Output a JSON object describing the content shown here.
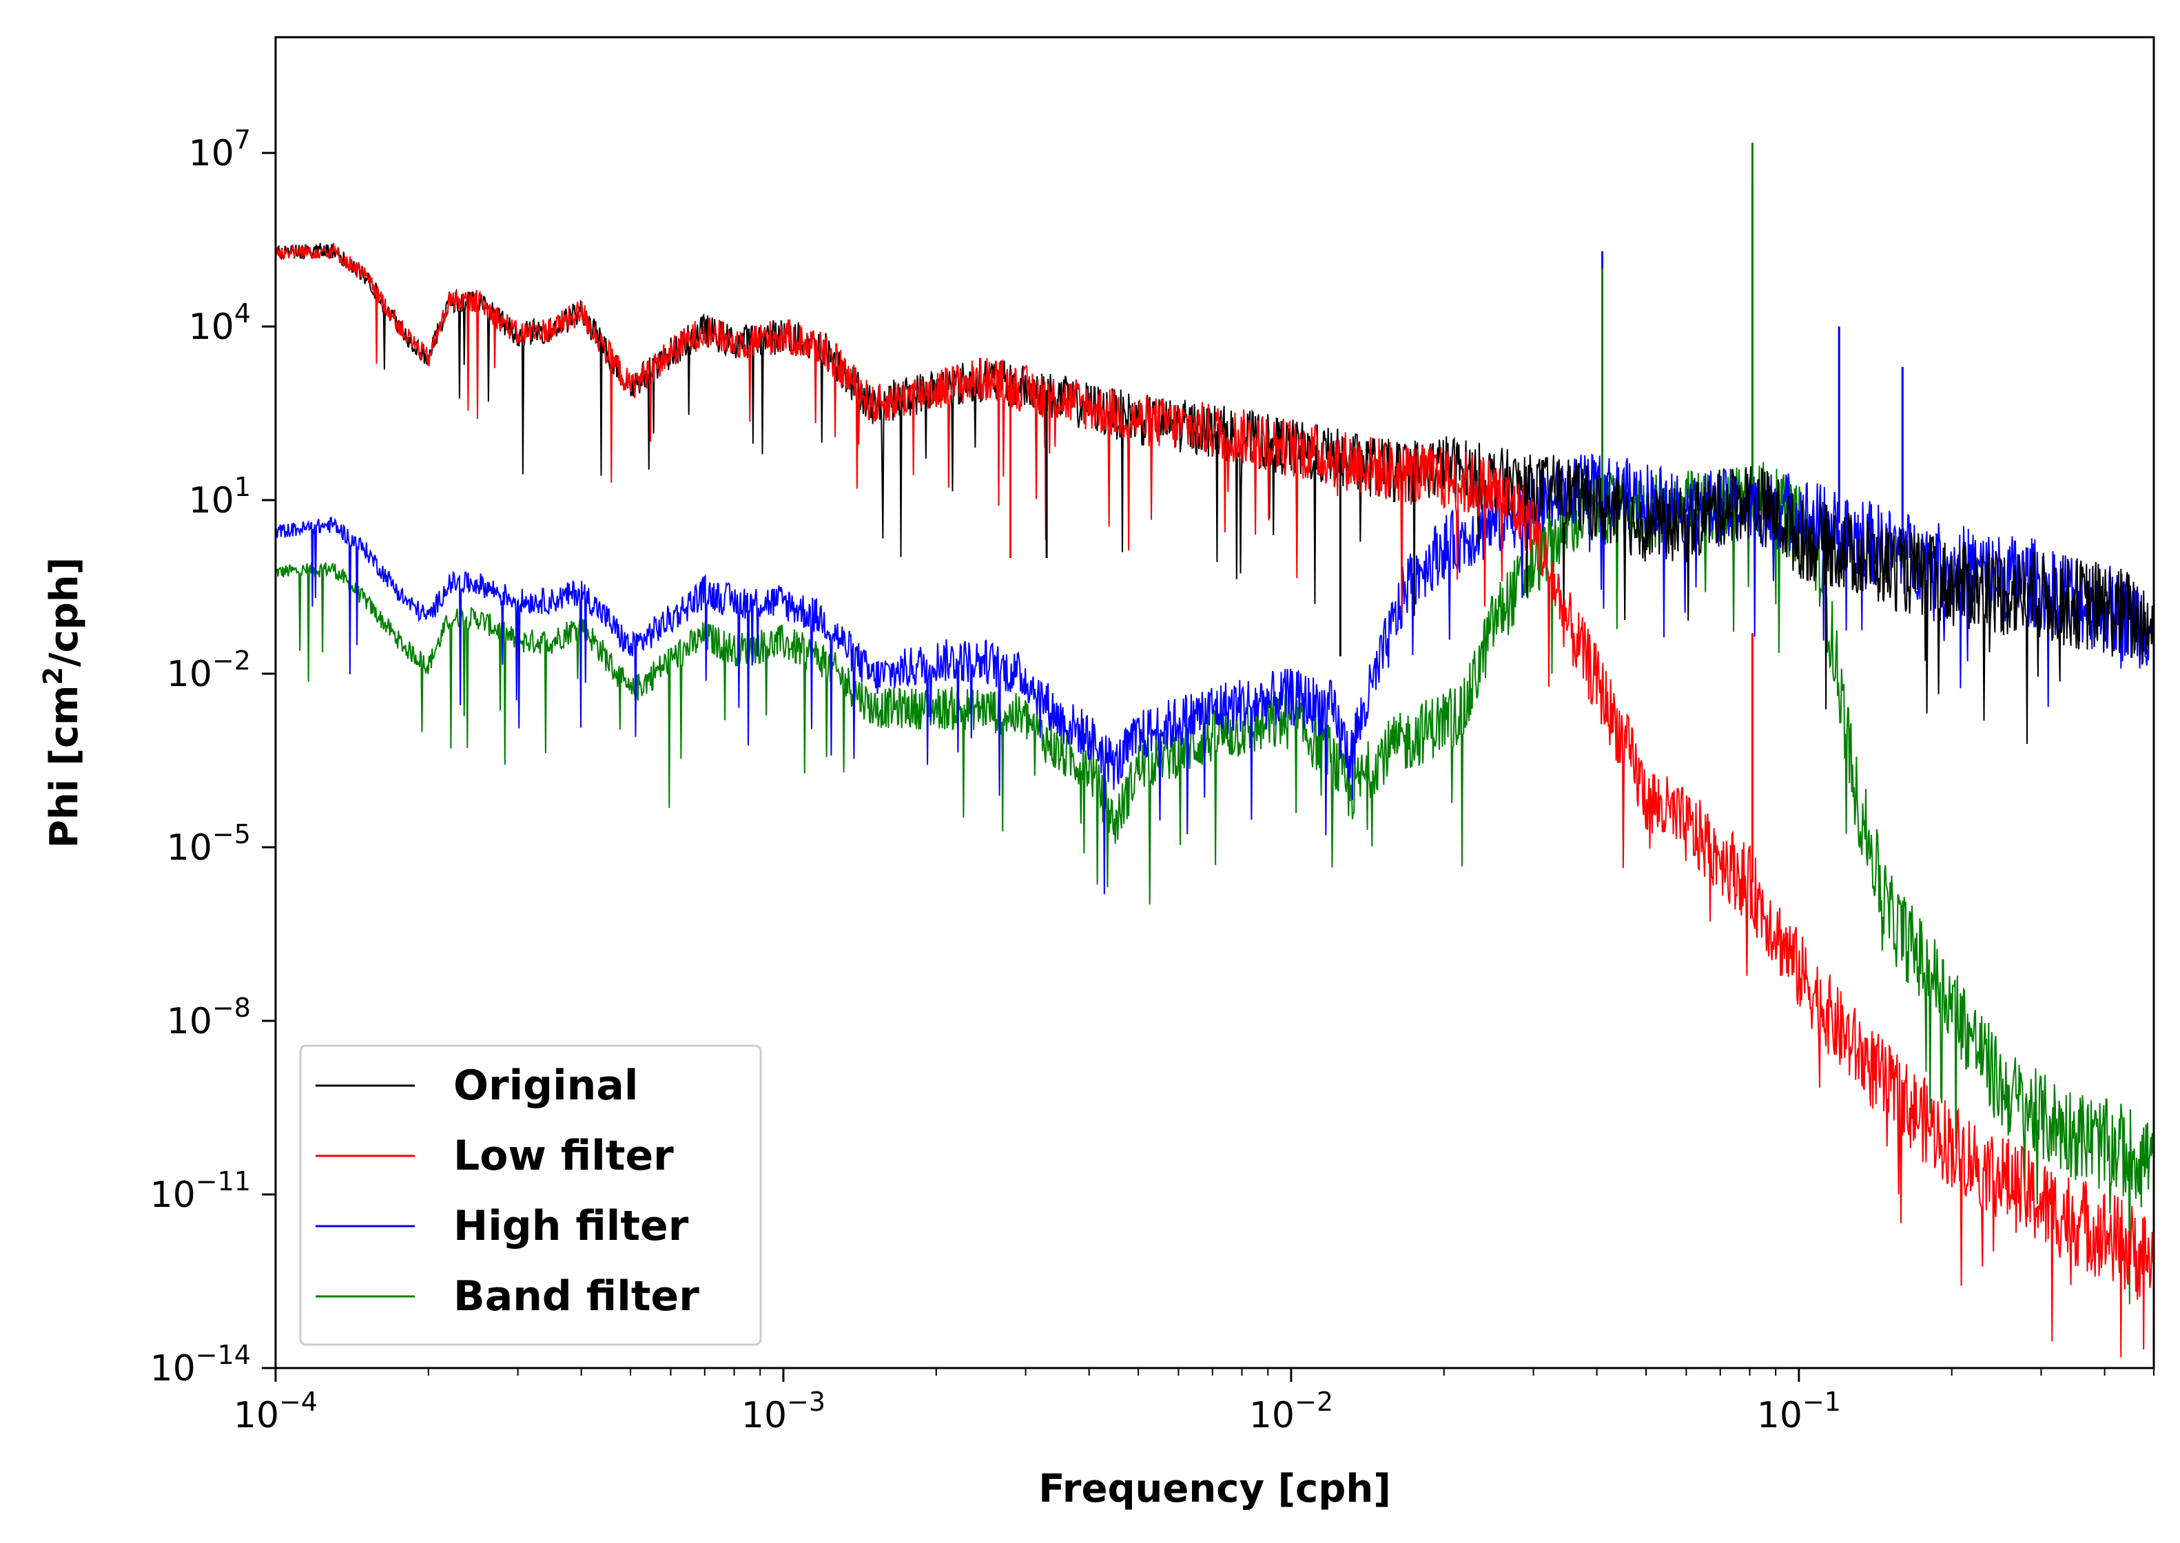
{
  "chart_data": {
    "type": "line",
    "title": "",
    "xlabel": "Frequency [cph]",
    "ylabel_main": "Phi [cm",
    "ylabel_sup": "2",
    "ylabel_tail": "/cph]",
    "xscale": "log",
    "yscale": "log",
    "xlim": [
      0.0001,
      0.5
    ],
    "ylim": [
      1e-14,
      1000000000.0
    ],
    "x_ticks": [
      {
        "base": "10",
        "exp": "−4"
      },
      {
        "base": "10",
        "exp": "−3"
      },
      {
        "base": "10",
        "exp": "−2"
      },
      {
        "base": "10",
        "exp": "−1"
      }
    ],
    "y_ticks": [
      {
        "base": "10",
        "exp": "7"
      },
      {
        "base": "10",
        "exp": "4"
      },
      {
        "base": "10",
        "exp": "1"
      },
      {
        "base": "10",
        "exp": "−2"
      },
      {
        "base": "10",
        "exp": "−5"
      },
      {
        "base": "10",
        "exp": "−8"
      },
      {
        "base": "10",
        "exp": "−11"
      },
      {
        "base": "10",
        "exp": "−14"
      }
    ],
    "grid": false,
    "legend_position": "lower-left",
    "series": [
      {
        "name": "Original",
        "color": "#000000",
        "x": [
          0.0001,
          0.00013,
          0.00015,
          0.00018,
          0.0002,
          0.00022,
          0.00025,
          0.0003,
          0.00035,
          0.0004,
          0.00045,
          0.0005,
          0.0006,
          0.0007,
          0.0008,
          0.001,
          0.0012,
          0.0015,
          0.002,
          0.0025,
          0.003,
          0.004,
          0.005,
          0.007,
          0.01,
          0.013,
          0.016,
          0.02,
          0.025,
          0.03,
          0.035,
          0.04,
          0.05,
          0.06,
          0.07,
          0.08,
          0.09,
          0.1,
          0.12,
          0.15,
          0.2,
          0.3,
          0.4,
          0.5
        ],
        "y": [
          200000,
          220000,
          80000,
          8000,
          3000,
          30000,
          30000,
          8000,
          10000,
          20000,
          4000,
          1000,
          4000,
          10000,
          6000,
          8000,
          5000,
          500,
          1000,
          1500,
          1000,
          500,
          300,
          200,
          100,
          60,
          40,
          50,
          30,
          20,
          20,
          10,
          5,
          5,
          10,
          15,
          8,
          3,
          2,
          1,
          0.5,
          0.3,
          0.2,
          0.1
        ]
      },
      {
        "name": "Low filter",
        "color": "#ff0000",
        "x": [
          0.0001,
          0.00013,
          0.00015,
          0.00018,
          0.0002,
          0.00022,
          0.00025,
          0.0003,
          0.00035,
          0.0004,
          0.00045,
          0.0005,
          0.0006,
          0.0007,
          0.0008,
          0.001,
          0.0012,
          0.0015,
          0.002,
          0.0025,
          0.003,
          0.004,
          0.005,
          0.007,
          0.01,
          0.013,
          0.016,
          0.02,
          0.025,
          0.03,
          0.035,
          0.04,
          0.045,
          0.05,
          0.06,
          0.07,
          0.08,
          0.09,
          0.1,
          0.12,
          0.15,
          0.2,
          0.3,
          0.4,
          0.5
        ],
        "y": [
          200000,
          220000,
          80000,
          8000,
          3000,
          30000,
          30000,
          8000,
          10000,
          20000,
          4000,
          1000,
          4000,
          10000,
          6000,
          8000,
          5000,
          500,
          1000,
          1500,
          1000,
          500,
          300,
          200,
          100,
          60,
          40,
          30,
          20,
          5,
          0.1,
          0.01,
          0.001,
          0.0001,
          3e-05,
          1e-05,
          3e-06,
          5e-07,
          1e-07,
          1e-08,
          1e-09,
          1e-10,
          1e-11,
          3e-12,
          1e-12
        ]
      },
      {
        "name": "High filter",
        "color": "#0000ff",
        "x": [
          0.0001,
          0.00013,
          0.00015,
          0.00018,
          0.0002,
          0.00022,
          0.00025,
          0.0003,
          0.00035,
          0.0004,
          0.00045,
          0.0005,
          0.0006,
          0.0007,
          0.0008,
          0.001,
          0.0012,
          0.0015,
          0.002,
          0.0025,
          0.003,
          0.0035,
          0.004,
          0.0045,
          0.005,
          0.007,
          0.01,
          0.012,
          0.013,
          0.015,
          0.017,
          0.02,
          0.025,
          0.03,
          0.035,
          0.04,
          0.05,
          0.06,
          0.07,
          0.08,
          0.09,
          0.1,
          0.12,
          0.15,
          0.2,
          0.3,
          0.4,
          0.5
        ],
        "y": [
          3,
          4,
          1.5,
          0.2,
          0.1,
          0.4,
          0.4,
          0.2,
          0.2,
          0.3,
          0.1,
          0.03,
          0.1,
          0.3,
          0.2,
          0.2,
          0.1,
          0.01,
          0.02,
          0.02,
          0.01,
          0.002,
          0.001,
          0.0003,
          0.001,
          0.003,
          0.005,
          0.003,
          0.0005,
          0.02,
          0.5,
          2,
          5,
          10,
          20,
          20,
          15,
          10,
          10,
          10,
          10,
          8,
          4,
          2,
          1,
          0.5,
          0.2,
          0.1
        ]
      },
      {
        "name": "Band filter",
        "color": "#008000",
        "x": [
          0.0001,
          0.00013,
          0.00015,
          0.00018,
          0.0002,
          0.00022,
          0.00025,
          0.0003,
          0.00035,
          0.0004,
          0.00045,
          0.0005,
          0.0006,
          0.0007,
          0.0008,
          0.001,
          0.0012,
          0.0015,
          0.002,
          0.0025,
          0.003,
          0.0035,
          0.004,
          0.0045,
          0.005,
          0.007,
          0.01,
          0.012,
          0.013,
          0.015,
          0.02,
          0.022,
          0.025,
          0.03,
          0.035,
          0.04,
          0.05,
          0.06,
          0.07,
          0.08,
          0.09,
          0.1,
          0.11,
          0.12,
          0.13,
          0.15,
          0.2,
          0.25,
          0.3,
          0.4,
          0.5
        ],
        "y": [
          0.6,
          0.7,
          0.2,
          0.03,
          0.015,
          0.1,
          0.1,
          0.04,
          0.04,
          0.08,
          0.02,
          0.005,
          0.02,
          0.05,
          0.03,
          0.04,
          0.02,
          0.003,
          0.003,
          0.003,
          0.002,
          0.0005,
          0.0003,
          3e-05,
          0.0003,
          0.001,
          0.002,
          0.0005,
          0.0001,
          0.0005,
          0.002,
          0.003,
          0.1,
          1,
          5,
          10,
          8,
          10,
          10,
          20,
          10,
          5,
          1,
          0.01,
          0.0001,
          1e-06,
          3e-08,
          1e-09,
          3e-10,
          1e-10,
          6e-11
        ]
      }
    ],
    "peaks": [
      {
        "series": "Original",
        "x": 0.0125,
        "y": 0.02
      },
      {
        "series": "Original",
        "x": 0.0033,
        "y": 1
      },
      {
        "series": "High filter",
        "x": 0.041,
        "y": 200000
      },
      {
        "series": "High filter",
        "x": 0.081,
        "y": 3000000
      },
      {
        "series": "High filter",
        "x": 0.12,
        "y": 10000
      },
      {
        "series": "High filter",
        "x": 0.16,
        "y": 2000
      },
      {
        "series": "Band filter",
        "x": 0.041,
        "y": 100000
      },
      {
        "series": "Band filter",
        "x": 0.081,
        "y": 15000000
      },
      {
        "series": "Low filter",
        "x": 0.081,
        "y": 0.05
      },
      {
        "series": "Low filter",
        "x": 0.0028,
        "y": 1
      }
    ]
  }
}
